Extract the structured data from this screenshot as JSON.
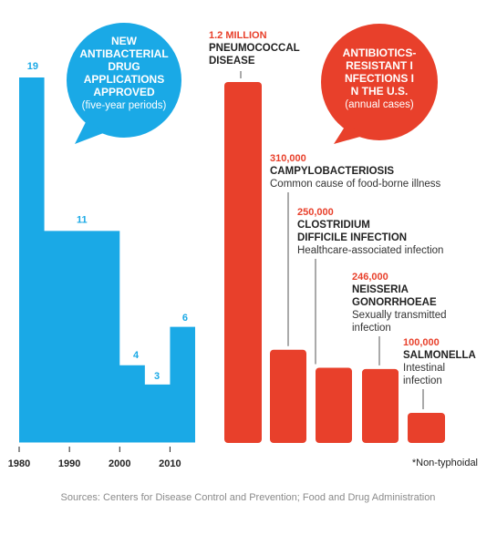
{
  "colors": {
    "blue": "#1aa9e6",
    "red": "#e8402b",
    "text": "#222222",
    "muted": "#8a8a8a"
  },
  "chart_data": [
    {
      "type": "bar",
      "title": "NEW ANTIBACTERIAL DRUG APPLICATIONS APPROVED",
      "subtitle": "(five-year periods)",
      "x_ticks": [
        "1980",
        "1990",
        "2000",
        "2010"
      ],
      "periods": [
        {
          "start": 1980,
          "end": 1985,
          "value": 19
        },
        {
          "start": 1985,
          "end": 1990,
          "value": 11
        },
        {
          "start": 1990,
          "end": 1995,
          "value": 11
        },
        {
          "start": 1995,
          "end": 2000,
          "value": 11
        },
        {
          "start": 2000,
          "end": 2005,
          "value": 4
        },
        {
          "start": 2005,
          "end": 2010,
          "value": 3
        },
        {
          "start": 2010,
          "end": 2015,
          "value": 6
        }
      ],
      "labels": [
        "19",
        "11",
        "4",
        "3",
        "6"
      ],
      "ylim": [
        0,
        19
      ],
      "grid": false
    },
    {
      "type": "bar",
      "title": "ANTIBIOTICS-RESISTANT INFECTIONS IN THE U.S.",
      "subtitle": "(annual cases)",
      "categories": [
        {
          "value_label": "1.2 MILLION",
          "name_lines": [
            "PNEUMOCOCCAL",
            "DISEASE"
          ],
          "desc_lines": []
        },
        {
          "value_label": "310,000",
          "name_lines": [
            "CAMPYLOBACTERIOSIS"
          ],
          "desc_lines": [
            "Common cause of food-borne illness"
          ]
        },
        {
          "value_label": "250,000",
          "name_lines": [
            "CLOSTRIDIUM",
            "DIFFICILE INFECTION"
          ],
          "desc_lines": [
            "Healthcare-associated infection"
          ]
        },
        {
          "value_label": "246,000",
          "name_lines": [
            "NEISSERIA",
            "GONORRHOEAE"
          ],
          "desc_lines": [
            "Sexually transmitted",
            "infection"
          ]
        },
        {
          "value_label": "100,000",
          "name_lines": [
            "SALMONELLA"
          ],
          "desc_lines": [
            "Intestinal",
            "infection"
          ]
        }
      ],
      "values": [
        1200000,
        310000,
        250000,
        246000,
        100000
      ],
      "footnote": "*Non-typhoidal",
      "grid": false
    }
  ],
  "sources": "Sources: Centers for Disease Control and Prevention; Food and Drug Administration"
}
